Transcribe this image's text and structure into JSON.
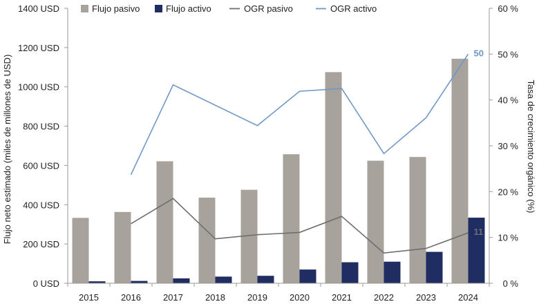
{
  "chart_data": {
    "type": "bar",
    "categories": [
      "2015",
      "2016",
      "2017",
      "2018",
      "2019",
      "2020",
      "2021",
      "2022",
      "2023",
      "2024"
    ],
    "series": [
      {
        "name": "Flujo pasivo",
        "kind": "bar",
        "axis": "left",
        "color": "#a8a29d",
        "values": [
          333,
          363,
          621,
          436,
          476,
          657,
          1075,
          624,
          643,
          1143
        ]
      },
      {
        "name": "Flujo activo",
        "kind": "bar",
        "axis": "left",
        "color": "#1f2d63",
        "values": [
          10,
          12,
          25,
          34,
          38,
          70,
          107,
          110,
          160,
          334
        ]
      },
      {
        "name": "OGR pasivo",
        "kind": "line",
        "axis": "right",
        "color": "#6e6e6e",
        "values": [
          null,
          13,
          18.5,
          9.7,
          10.6,
          11.1,
          14.6,
          6.6,
          7.6,
          11
        ]
      },
      {
        "name": "OGR activo",
        "kind": "line",
        "axis": "right",
        "color": "#6f97c6",
        "values": [
          null,
          23.7,
          43.3,
          null,
          34.4,
          41.9,
          42.5,
          28.3,
          36.1,
          50
        ]
      }
    ],
    "ylabel": "Flujo neto estimado (miles de millones de USD)",
    "y2label": "Tasa de crecimiento orgánico (%)",
    "ylim": [
      0,
      1400
    ],
    "y2lim": [
      0,
      60
    ],
    "yticks": [
      "0 USD",
      "200 USD",
      "400 USD",
      "600 USD",
      "800 USD",
      "1000 USD",
      "1200 USD",
      "1400 USD"
    ],
    "y2ticks": [
      "0 %",
      "10 %",
      "20 %",
      "30 %",
      "40 %",
      "50 %",
      "60 %"
    ],
    "annotations": [
      {
        "series": "OGR activo",
        "category": "2024",
        "text": "50"
      },
      {
        "series": "OGR pasivo",
        "category": "2024",
        "text": "11"
      }
    ],
    "legend_position": "top",
    "grid": false
  }
}
